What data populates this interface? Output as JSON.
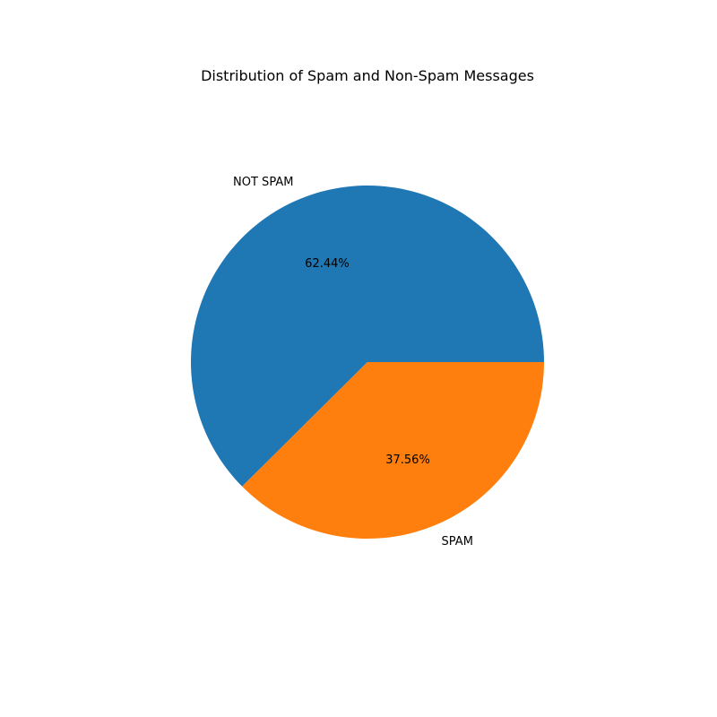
{
  "chart_data": {
    "type": "pie",
    "title": "Distribution of Spam and Non-Spam Messages",
    "labels": [
      "NOT SPAM",
      "SPAM"
    ],
    "values": [
      62.44,
      37.56
    ],
    "percent_labels": [
      "62.44%",
      "37.56%"
    ],
    "colors": [
      "#1f77b4",
      "#ff7f0e"
    ],
    "start_angle_deg": 0,
    "direction": "counterclockwise",
    "legend": "none"
  }
}
